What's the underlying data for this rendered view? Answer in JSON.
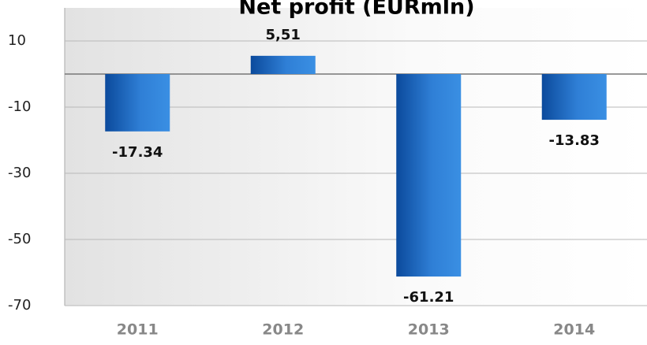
{
  "chart_data": {
    "type": "bar",
    "title": "Net profit (EURmln)",
    "categories": [
      "2011",
      "2012",
      "2013",
      "2014"
    ],
    "values": [
      -17.34,
      5.51,
      -61.21,
      -13.83
    ],
    "value_labels": [
      "-17.34",
      "5,51",
      "-61.21",
      "-13.83"
    ],
    "ylim": [
      -70,
      20
    ],
    "yticks": [
      -70,
      -50,
      -30,
      -10,
      10
    ],
    "grid": true
  }
}
